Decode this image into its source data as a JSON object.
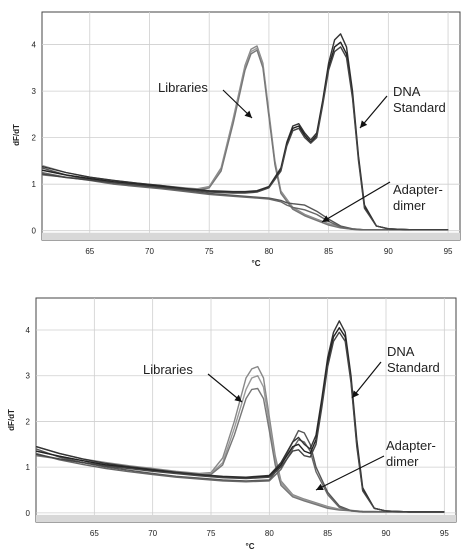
{
  "chart_data": [
    {
      "type": "line",
      "title": "",
      "xlabel": "°C",
      "ylabel": "dF/dT",
      "xlim": [
        61,
        96
      ],
      "ylim": [
        -0.2,
        4.7
      ],
      "xticks": [
        65,
        70,
        75,
        80,
        85,
        90,
        95
      ],
      "yticks": [
        0,
        1,
        2,
        3,
        4
      ],
      "xtick_labels": [
        "65",
        "70",
        "75",
        "80",
        "85",
        "90",
        "95"
      ],
      "ytick_labels": [
        "0",
        "1",
        "2",
        "3",
        "4"
      ],
      "grid": true,
      "annotations": [
        {
          "text": "Libraries",
          "target": "libraries"
        },
        {
          "text": [
            "DNA",
            "Standard"
          ],
          "target": "standard"
        },
        {
          "text": [
            "Adapter-",
            "dimer"
          ],
          "target": "dimer"
        }
      ],
      "series": [
        {
          "group": "libraries",
          "color": "#888888",
          "x": [
            61,
            63,
            65,
            67,
            69,
            71,
            73,
            74,
            75,
            76,
            77,
            78,
            78.5,
            79,
            79.5,
            80,
            80.5,
            81,
            82,
            83,
            84,
            85,
            86,
            87,
            88,
            90,
            92,
            95
          ],
          "y": [
            1.4,
            1.25,
            1.15,
            1.08,
            1.02,
            0.97,
            0.92,
            0.9,
            0.95,
            1.35,
            2.4,
            3.55,
            3.9,
            3.97,
            3.6,
            2.55,
            1.5,
            0.85,
            0.5,
            0.35,
            0.25,
            0.15,
            0.08,
            0.04,
            0.02,
            0.02,
            0.02,
            0.02
          ]
        },
        {
          "group": "libraries",
          "color": "#999999",
          "x": [
            61,
            63,
            65,
            67,
            69,
            71,
            73,
            74,
            75,
            76,
            77,
            78,
            78.5,
            79,
            79.5,
            80,
            80.5,
            81,
            82,
            83,
            84,
            85,
            86,
            87,
            88,
            90,
            92,
            95
          ],
          "y": [
            1.3,
            1.2,
            1.12,
            1.06,
            1.0,
            0.95,
            0.9,
            0.88,
            0.93,
            1.3,
            2.35,
            3.5,
            3.85,
            3.92,
            3.55,
            2.5,
            1.45,
            0.82,
            0.48,
            0.33,
            0.23,
            0.13,
            0.07,
            0.03,
            0.02,
            0.02,
            0.02,
            0.02
          ]
        },
        {
          "group": "libraries",
          "color": "#777777",
          "x": [
            61,
            63,
            65,
            67,
            69,
            71,
            73,
            74,
            75,
            76,
            77,
            78,
            78.5,
            79,
            79.5,
            80,
            80.5,
            81,
            82,
            83,
            84,
            85,
            86,
            87,
            88,
            90,
            92,
            95
          ],
          "y": [
            1.2,
            1.15,
            1.1,
            1.04,
            0.98,
            0.94,
            0.89,
            0.87,
            0.92,
            1.28,
            2.3,
            3.45,
            3.8,
            3.88,
            3.5,
            2.45,
            1.42,
            0.8,
            0.46,
            0.32,
            0.22,
            0.12,
            0.06,
            0.03,
            0.02,
            0.02,
            0.02,
            0.02
          ]
        },
        {
          "group": "dimer",
          "color": "#555555",
          "x": [
            61,
            63,
            65,
            67,
            69,
            71,
            73,
            75,
            77,
            79,
            80,
            81,
            81.5,
            82,
            83,
            84,
            85,
            86,
            87,
            88,
            90,
            92,
            95
          ],
          "y": [
            1.35,
            1.2,
            1.1,
            1.03,
            0.97,
            0.92,
            0.86,
            0.8,
            0.76,
            0.72,
            0.7,
            0.65,
            0.6,
            0.58,
            0.55,
            0.42,
            0.25,
            0.1,
            0.04,
            0.02,
            0.02,
            0.02,
            0.02
          ]
        },
        {
          "group": "dimer",
          "color": "#666666",
          "x": [
            61,
            63,
            65,
            67,
            69,
            71,
            73,
            75,
            77,
            79,
            80,
            81,
            81.5,
            82,
            83,
            84,
            85,
            86,
            87,
            88,
            90,
            92,
            95
          ],
          "y": [
            1.25,
            1.15,
            1.08,
            1.0,
            0.95,
            0.9,
            0.84,
            0.78,
            0.74,
            0.7,
            0.68,
            0.62,
            0.55,
            0.5,
            0.45,
            0.35,
            0.2,
            0.08,
            0.03,
            0.02,
            0.02,
            0.02,
            0.02
          ]
        },
        {
          "group": "standard",
          "color": "#333333",
          "x": [
            61,
            63,
            65,
            67,
            69,
            71,
            73,
            75,
            76,
            77,
            78,
            79,
            80,
            81,
            81.5,
            82,
            82.5,
            83,
            83.5,
            84,
            84.5,
            85,
            85.5,
            86,
            86.5,
            87,
            87.5,
            88,
            89,
            90,
            92,
            95
          ],
          "y": [
            1.38,
            1.25,
            1.15,
            1.08,
            1.02,
            0.97,
            0.91,
            0.86,
            0.85,
            0.84,
            0.84,
            0.86,
            0.95,
            1.35,
            1.9,
            2.25,
            2.3,
            2.1,
            1.95,
            2.1,
            2.8,
            3.6,
            4.1,
            4.23,
            3.95,
            3.0,
            1.6,
            0.55,
            0.1,
            0.04,
            0.02,
            0.02
          ]
        },
        {
          "group": "standard",
          "color": "#222222",
          "x": [
            61,
            63,
            65,
            67,
            69,
            71,
            73,
            75,
            76,
            77,
            78,
            79,
            80,
            81,
            81.5,
            82,
            82.5,
            83,
            83.5,
            84,
            84.5,
            85,
            85.5,
            86,
            86.5,
            87,
            87.5,
            88,
            89,
            90,
            92,
            95
          ],
          "y": [
            1.3,
            1.2,
            1.12,
            1.05,
            1.0,
            0.95,
            0.89,
            0.84,
            0.83,
            0.82,
            0.82,
            0.84,
            0.93,
            1.3,
            1.85,
            2.2,
            2.25,
            2.05,
            1.9,
            2.05,
            2.75,
            3.5,
            3.95,
            4.05,
            3.8,
            2.9,
            1.55,
            0.5,
            0.1,
            0.04,
            0.02,
            0.02
          ]
        },
        {
          "group": "standard",
          "color": "#444444",
          "x": [
            61,
            63,
            65,
            67,
            69,
            71,
            73,
            75,
            76,
            77,
            78,
            79,
            80,
            81,
            81.5,
            82,
            82.5,
            83,
            83.5,
            84,
            84.5,
            85,
            85.5,
            86,
            86.5,
            87,
            87.5,
            88,
            89,
            90,
            92,
            95
          ],
          "y": [
            1.22,
            1.14,
            1.09,
            1.03,
            0.98,
            0.93,
            0.88,
            0.83,
            0.82,
            0.81,
            0.81,
            0.83,
            0.92,
            1.28,
            1.82,
            2.15,
            2.2,
            2.0,
            1.88,
            2.0,
            2.7,
            3.45,
            3.85,
            3.95,
            3.72,
            2.85,
            1.5,
            0.48,
            0.1,
            0.04,
            0.02,
            0.02
          ]
        }
      ]
    },
    {
      "type": "line",
      "title": "",
      "xlabel": "°C",
      "ylabel": "dF/dT",
      "xlim": [
        60,
        96
      ],
      "ylim": [
        -0.2,
        4.7
      ],
      "xticks": [
        65,
        70,
        75,
        80,
        85,
        90,
        95
      ],
      "yticks": [
        0,
        1,
        2,
        3,
        4
      ],
      "xtick_labels": [
        "65",
        "70",
        "75",
        "80",
        "85",
        "90",
        "95"
      ],
      "ytick_labels": [
        "0",
        "1",
        "2",
        "3",
        "4"
      ],
      "grid": true,
      "annotations": [
        {
          "text": "Libraries",
          "target": "libraries"
        },
        {
          "text": [
            "DNA",
            "Standard"
          ],
          "target": "standard"
        },
        {
          "text": [
            "Adapter-",
            "dimer"
          ],
          "target": "dimer"
        }
      ],
      "series": [
        {
          "group": "libraries",
          "color": "#888888",
          "x": [
            60,
            62,
            64,
            66,
            68,
            70,
            72,
            74,
            75,
            76,
            77,
            78,
            78.5,
            79,
            79.5,
            80,
            80.5,
            81,
            82,
            83,
            84,
            85,
            86,
            88,
            92,
            95
          ],
          "y": [
            1.45,
            1.3,
            1.18,
            1.1,
            1.03,
            0.97,
            0.91,
            0.86,
            0.88,
            1.2,
            2.0,
            2.95,
            3.15,
            3.2,
            2.95,
            2.1,
            1.25,
            0.7,
            0.4,
            0.3,
            0.22,
            0.14,
            0.08,
            0.03,
            0.02,
            0.02
          ]
        },
        {
          "group": "libraries",
          "color": "#999999",
          "x": [
            60,
            62,
            64,
            66,
            68,
            70,
            72,
            74,
            75,
            76,
            77,
            78,
            78.5,
            79,
            79.5,
            80,
            80.5,
            81,
            82,
            83,
            84,
            85,
            86,
            88,
            92,
            95
          ],
          "y": [
            1.35,
            1.24,
            1.14,
            1.07,
            1.01,
            0.95,
            0.89,
            0.84,
            0.86,
            1.1,
            1.85,
            2.7,
            2.95,
            3.0,
            2.75,
            1.95,
            1.15,
            0.65,
            0.38,
            0.28,
            0.2,
            0.12,
            0.07,
            0.03,
            0.02,
            0.02
          ]
        },
        {
          "group": "libraries",
          "color": "#777777",
          "x": [
            60,
            62,
            64,
            66,
            68,
            70,
            72,
            74,
            75,
            76,
            77,
            78,
            78.5,
            79,
            79.5,
            80,
            80.5,
            81,
            82,
            83,
            84,
            85,
            86,
            88,
            92,
            95
          ],
          "y": [
            1.25,
            1.18,
            1.1,
            1.04,
            0.98,
            0.93,
            0.87,
            0.82,
            0.84,
            1.05,
            1.7,
            2.5,
            2.7,
            2.72,
            2.5,
            1.8,
            1.05,
            0.6,
            0.35,
            0.26,
            0.18,
            0.1,
            0.06,
            0.03,
            0.02,
            0.02
          ]
        },
        {
          "group": "dimer",
          "color": "#555555",
          "x": [
            60,
            62,
            64,
            66,
            68,
            70,
            72,
            74,
            76,
            78,
            80,
            81,
            82,
            82.5,
            83,
            83.5,
            84,
            85,
            86,
            87,
            88,
            90,
            95
          ],
          "y": [
            1.4,
            1.22,
            1.1,
            1.0,
            0.93,
            0.86,
            0.8,
            0.76,
            0.72,
            0.7,
            0.72,
            1.05,
            1.55,
            1.8,
            1.75,
            1.5,
            1.0,
            0.45,
            0.15,
            0.05,
            0.02,
            0.02,
            0.02
          ]
        },
        {
          "group": "dimer",
          "color": "#666666",
          "x": [
            60,
            62,
            64,
            66,
            68,
            70,
            72,
            74,
            76,
            78,
            80,
            81,
            82,
            82.5,
            83,
            83.5,
            84,
            85,
            86,
            87,
            88,
            90,
            95
          ],
          "y": [
            1.3,
            1.16,
            1.06,
            0.97,
            0.9,
            0.84,
            0.78,
            0.74,
            0.7,
            0.68,
            0.7,
            0.95,
            1.4,
            1.6,
            1.55,
            1.35,
            0.9,
            0.4,
            0.12,
            0.04,
            0.02,
            0.02,
            0.02
          ]
        },
        {
          "group": "standard",
          "color": "#333333",
          "x": [
            60,
            62,
            64,
            66,
            68,
            70,
            72,
            74,
            76,
            78,
            80,
            81,
            82,
            82.5,
            83,
            83.5,
            84,
            84.5,
            85,
            85.5,
            86,
            86.5,
            87,
            87.5,
            88,
            89,
            90,
            92,
            95
          ],
          "y": [
            1.45,
            1.3,
            1.18,
            1.08,
            1.01,
            0.95,
            0.89,
            0.84,
            0.8,
            0.78,
            0.82,
            1.1,
            1.55,
            1.65,
            1.5,
            1.4,
            1.7,
            2.5,
            3.4,
            3.95,
            4.2,
            3.95,
            3.0,
            1.6,
            0.55,
            0.1,
            0.04,
            0.02,
            0.02
          ]
        },
        {
          "group": "standard",
          "color": "#222222",
          "x": [
            60,
            62,
            64,
            66,
            68,
            70,
            72,
            74,
            76,
            78,
            80,
            81,
            82,
            82.5,
            83,
            83.5,
            84,
            84.5,
            85,
            85.5,
            86,
            86.5,
            87,
            87.5,
            88,
            89,
            90,
            92,
            95
          ],
          "y": [
            1.35,
            1.24,
            1.14,
            1.05,
            0.99,
            0.93,
            0.87,
            0.82,
            0.78,
            0.76,
            0.8,
            1.05,
            1.45,
            1.5,
            1.35,
            1.3,
            1.6,
            2.4,
            3.3,
            3.85,
            4.05,
            3.85,
            2.9,
            1.5,
            0.5,
            0.1,
            0.04,
            0.02,
            0.02
          ]
        },
        {
          "group": "standard",
          "color": "#444444",
          "x": [
            60,
            62,
            64,
            66,
            68,
            70,
            72,
            74,
            76,
            78,
            80,
            81,
            82,
            82.5,
            83,
            83.5,
            84,
            84.5,
            85,
            85.5,
            86,
            86.5,
            87,
            87.5,
            88,
            89,
            90,
            92,
            95
          ],
          "y": [
            1.28,
            1.18,
            1.1,
            1.02,
            0.97,
            0.91,
            0.86,
            0.81,
            0.77,
            0.75,
            0.78,
            1.0,
            1.35,
            1.38,
            1.25,
            1.22,
            1.5,
            2.3,
            3.2,
            3.75,
            3.95,
            3.75,
            2.85,
            1.45,
            0.48,
            0.1,
            0.04,
            0.02,
            0.02
          ]
        }
      ]
    }
  ]
}
